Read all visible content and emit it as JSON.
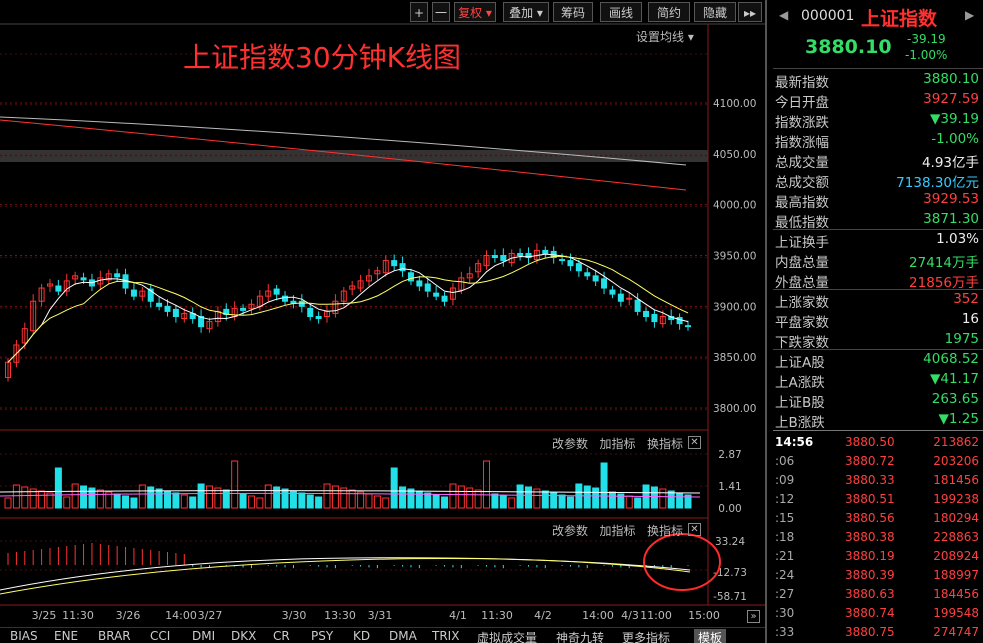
{
  "toolbar": {
    "plus": "+",
    "minus": "一",
    "fuquan": "复权",
    "diejia": "叠加",
    "chouma": "筹码",
    "huaxian": "画线",
    "jianyue": "简约",
    "yincang": "隐藏"
  },
  "title": "上证指数30分钟K线图",
  "ma_setting": "设置均线",
  "price_axis": [
    "4100.00",
    "4050.00",
    "4000.00",
    "3950.00",
    "3900.00",
    "3850.00",
    "3800.00"
  ],
  "volume_panel": {
    "options": [
      "改参数",
      "加指标",
      "换指标"
    ],
    "axis": [
      "2.87",
      "1.41",
      "0.00"
    ]
  },
  "macd_panel": {
    "options": [
      "改参数",
      "加指标",
      "换指标"
    ],
    "axis": [
      "33.24",
      "-12.73",
      "-58.71"
    ]
  },
  "x_axis": [
    "3/25",
    "11:30",
    "3/26",
    "14:00",
    "3/27",
    "3/30",
    "13:30",
    "3/31",
    "4/1",
    "11:30",
    "4/2",
    "14:00",
    "4/3",
    "11:00",
    "15:00"
  ],
  "bottom_tabs": [
    "BIAS",
    "ENE",
    "BRAR",
    "CCI",
    "DMI",
    "DKX",
    "CR",
    "PSY",
    "KD",
    "DMA",
    "TRIX",
    "虚拟成交量",
    "神奇九转",
    "更多指标",
    "模板"
  ],
  "colors": {
    "up": "#ff3333",
    "down": "#22e0e8",
    "ma_white": "#ffffff",
    "ma_yellow": "#ffff66",
    "title_red": "#ff3030",
    "green_text": "#33dd66"
  },
  "quote": {
    "code": "000001",
    "name": "上证指数",
    "price": "3880.10",
    "change": "-39.19",
    "change_pct": "-1.00%",
    "rows": [
      {
        "label": "最新指数",
        "value": "3880.10",
        "color": "#33dd66"
      },
      {
        "label": "今日开盘",
        "value": "3927.59",
        "color": "#ff4040"
      },
      {
        "label": "指数涨跌",
        "value": "▼39.19",
        "color": "#33dd66"
      },
      {
        "label": "指数涨幅",
        "value": "-1.00%",
        "color": "#33dd66"
      },
      {
        "label": "总成交量",
        "value": "4.93亿手",
        "color": "#eeeeee"
      },
      {
        "label": "总成交额",
        "value": "7138.30亿元",
        "color": "#33ccff"
      },
      {
        "label": "最高指数",
        "value": "3929.53",
        "color": "#ff4040"
      },
      {
        "label": "最低指数",
        "value": "3871.30",
        "color": "#33dd66"
      },
      {
        "label": "上证换手",
        "value": "1.03%",
        "color": "#eeeeee"
      },
      {
        "label": "内盘总量",
        "value": "27414万手",
        "color": "#33dd66"
      },
      {
        "label": "外盘总量",
        "value": "21856万手",
        "color": "#ff4040"
      },
      {
        "label": "上涨家数",
        "value": "352",
        "color": "#ff4040"
      },
      {
        "label": "平盘家数",
        "value": "16",
        "color": "#eeeeee"
      },
      {
        "label": "下跌家数",
        "value": "1975",
        "color": "#33dd66"
      },
      {
        "label": "上证A股",
        "value": "4068.52",
        "color": "#33dd66"
      },
      {
        "label": "上A涨跌",
        "value": "▼41.17",
        "color": "#33dd66"
      },
      {
        "label": "上证B股",
        "value": "263.65",
        "color": "#33dd66"
      },
      {
        "label": "上B涨跌",
        "value": "▼1.25",
        "color": "#33dd66"
      }
    ],
    "ticks": [
      {
        "time": "14:56",
        "price": "3880.50",
        "vol": "213862"
      },
      {
        "time": ":06",
        "price": "3880.72",
        "vol": "203206"
      },
      {
        "time": ":09",
        "price": "3880.33",
        "vol": "181456"
      },
      {
        "time": ":12",
        "price": "3880.51",
        "vol": "199238"
      },
      {
        "time": ":15",
        "price": "3880.56",
        "vol": "180294"
      },
      {
        "time": ":18",
        "price": "3880.38",
        "vol": "228863"
      },
      {
        "time": ":21",
        "price": "3880.19",
        "vol": "208924"
      },
      {
        "time": ":24",
        "price": "3880.39",
        "vol": "188997"
      },
      {
        "time": ":27",
        "price": "3880.63",
        "vol": "184456"
      },
      {
        "time": ":30",
        "price": "3880.74",
        "vol": "199548"
      },
      {
        "time": ":33",
        "price": "3880.75",
        "vol": "274747"
      }
    ]
  }
}
